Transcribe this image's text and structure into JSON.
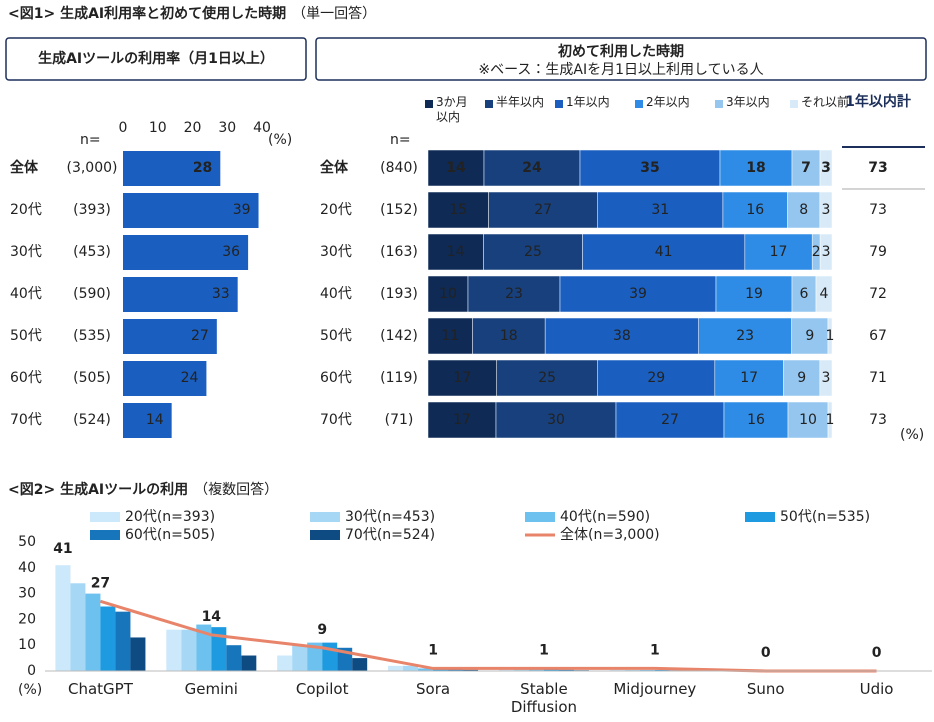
{
  "figures": [
    {
      "title": "<図1> 生成AI利用率と初めて使用した時期",
      "note": "（単一回答）"
    },
    {
      "title": "<図2> 生成AIツールの利用",
      "note": "（複数回答）"
    }
  ],
  "chart_data": [
    {
      "type": "hbar",
      "title": "生成AIツールの利用率（月1日以上）",
      "n_header": "n=",
      "categories": [
        "全体",
        "20代",
        "30代",
        "40代",
        "50代",
        "60代",
        "70代"
      ],
      "n_labels": [
        "(3,000)",
        "(393)",
        "(453)",
        "(590)",
        "(535)",
        "(505)",
        "(524)"
      ],
      "values": [
        28,
        39,
        36,
        33,
        27,
        24,
        14
      ],
      "color": "#1a5fbf",
      "xlim": [
        0,
        40
      ],
      "xticks": [
        0,
        10,
        20,
        30,
        40
      ],
      "unit": "(%)"
    },
    {
      "type": "stacked_hbar",
      "title": "初めて利用した時期",
      "subtitle": "※ベース：生成AIを月1日以上利用している人",
      "n_header": "n=",
      "categories": [
        "全体",
        "20代",
        "30代",
        "40代",
        "50代",
        "60代",
        "70代"
      ],
      "n_labels": [
        "(840)",
        "(152)",
        "(163)",
        "(193)",
        "(142)",
        "(119)",
        "(71)"
      ],
      "series": [
        {
          "name": "3か月以内",
          "color": "#0e2a55",
          "label_color": "#ffffff",
          "values": [
            14,
            15,
            14,
            10,
            11,
            17,
            17
          ]
        },
        {
          "name": "半年以内",
          "color": "#17407c",
          "label_color": "#ffffff",
          "values": [
            24,
            27,
            25,
            23,
            18,
            25,
            30
          ]
        },
        {
          "name": "1年以内",
          "color": "#1a5fbf",
          "label_color": "#ffffff",
          "values": [
            35,
            31,
            41,
            39,
            38,
            29,
            27
          ]
        },
        {
          "name": "2年以内",
          "color": "#2e8ce6",
          "label_color": "#ffffff",
          "values": [
            18,
            16,
            17,
            19,
            23,
            17,
            16
          ]
        },
        {
          "name": "3年以内",
          "color": "#94c6f0",
          "label_color": "#666666",
          "values": [
            7,
            8,
            2,
            6,
            9,
            9,
            10
          ]
        },
        {
          "name": "それ以前",
          "color": "#d8eaf8",
          "label_color": "#333333",
          "values": [
            3,
            3,
            3,
            4,
            1,
            3,
            1
          ]
        }
      ],
      "total": {
        "name": "1年以内計",
        "values": [
          73,
          73,
          79,
          72,
          67,
          71,
          73
        ]
      },
      "unit": "(%)"
    },
    {
      "type": "bar_line",
      "categories": [
        "ChatGPT",
        "Gemini",
        "Copilot",
        "Sora",
        "Stable Diffusion",
        "Midjourney",
        "Suno",
        "Udio"
      ],
      "series": [
        {
          "name": "20代(n=393)",
          "color": "#cce8fb",
          "label_color": "#1a4f8a",
          "values": [
            41,
            16,
            6,
            2,
            1,
            0.5,
            0.3,
            0.2
          ],
          "value_labels": [
            "41",
            null,
            null,
            null,
            null,
            null,
            null,
            null
          ]
        },
        {
          "name": "30代(n=453)",
          "color": "#a6d8f6",
          "values": [
            34,
            16,
            10,
            2,
            1,
            0.4,
            0.3,
            0.2
          ]
        },
        {
          "name": "40代(n=590)",
          "color": "#6cc1ef",
          "values": [
            30,
            18,
            11,
            1,
            1,
            0.4,
            0.2,
            0.2
          ]
        },
        {
          "name": "50代(n=535)",
          "color": "#1e9be0",
          "values": [
            25,
            17,
            11,
            1,
            1,
            0.4,
            0.2,
            0.1
          ]
        },
        {
          "name": "60代(n=505)",
          "color": "#1775bb",
          "values": [
            23,
            10,
            9,
            1,
            0.5,
            0.3,
            0.2,
            0.1
          ]
        },
        {
          "name": "70代(n=524)",
          "color": "#0e4b82",
          "values": [
            13,
            6,
            5,
            0.5,
            0.3,
            0.2,
            0.1,
            0.1
          ]
        },
        {
          "name": "全体(n=3,000)",
          "type": "line",
          "color": "#e8846a",
          "show_labels": true,
          "values": [
            27,
            14,
            9,
            1,
            1,
            1,
            0,
            0
          ]
        }
      ],
      "ylim": [
        0,
        50
      ],
      "yticks": [
        0,
        10,
        20,
        30,
        40,
        50
      ],
      "unit": "(%)",
      "grid": false
    }
  ]
}
